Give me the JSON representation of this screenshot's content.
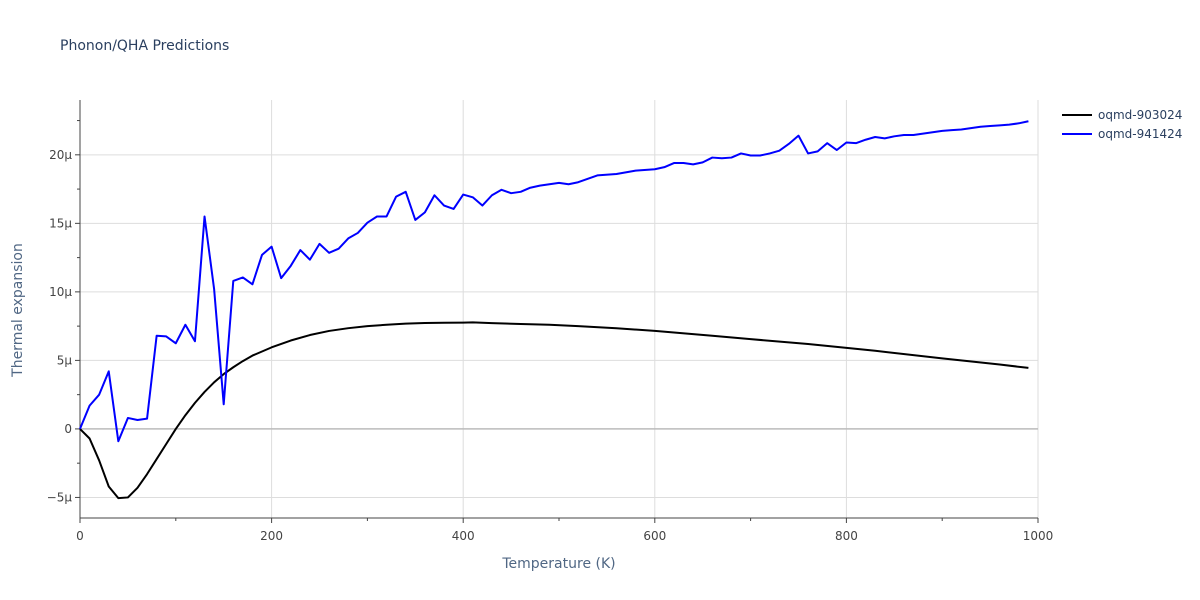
{
  "chart_data": {
    "type": "line",
    "title": "Phonon/QHA Predictions",
    "xlabel": "Temperature (K)",
    "ylabel": "Thermal expansion",
    "xlim": [
      0,
      1000
    ],
    "ylim": [
      -6.5e-06,
      2.4e-05
    ],
    "grid": true,
    "legend_position": "top-right",
    "x_ticks": [
      0,
      200,
      400,
      600,
      800,
      1000
    ],
    "x_tick_labels": [
      "0",
      "200",
      "400",
      "600",
      "800",
      "1000"
    ],
    "y_ticks": [
      -5e-06,
      0,
      5e-06,
      1e-05,
      1.5e-05,
      2e-05
    ],
    "y_tick_labels": [
      "−5μ",
      "0",
      "5μ",
      "10μ",
      "15μ",
      "20μ"
    ],
    "series": [
      {
        "name": "oqmd-903024",
        "color": "#000000",
        "x": [
          0,
          10,
          20,
          30,
          40,
          50,
          60,
          70,
          80,
          90,
          100,
          110,
          120,
          130,
          140,
          150,
          160,
          170,
          180,
          190,
          200,
          220,
          240,
          260,
          280,
          300,
          320,
          340,
          360,
          380,
          400,
          410,
          430,
          460,
          490,
          520,
          560,
          600,
          660,
          700,
          760,
          830,
          900,
          960,
          990
        ],
        "values": [
          0.0,
          -7e-07,
          -2.3e-06,
          -4.2e-06,
          -5.05e-06,
          -5e-06,
          -4.3e-06,
          -3.3e-06,
          -2.2e-06,
          -1.1e-06,
          0.0,
          1e-06,
          1.9e-06,
          2.7e-06,
          3.4e-06,
          4e-06,
          4.5e-06,
          4.95e-06,
          5.35e-06,
          5.65e-06,
          5.95e-06,
          6.45e-06,
          6.85e-06,
          7.15e-06,
          7.35e-06,
          7.5e-06,
          7.6e-06,
          7.68e-06,
          7.73e-06,
          7.75e-06,
          7.76e-06,
          7.77e-06,
          7.72e-06,
          7.66e-06,
          7.6e-06,
          7.5e-06,
          7.35e-06,
          7.15e-06,
          6.8e-06,
          6.55e-06,
          6.2e-06,
          5.7e-06,
          5.15e-06,
          4.7e-06,
          4.45e-06
        ]
      },
      {
        "name": "oqmd-941424",
        "color": "#0000ff",
        "x": [
          0,
          10,
          20,
          30,
          40,
          50,
          60,
          70,
          80,
          90,
          100,
          110,
          120,
          130,
          140,
          150,
          160,
          170,
          180,
          190,
          200,
          210,
          220,
          230,
          240,
          250,
          260,
          270,
          280,
          290,
          300,
          310,
          320,
          330,
          340,
          350,
          360,
          370,
          380,
          390,
          400,
          410,
          420,
          430,
          440,
          450,
          460,
          470,
          480,
          490,
          500,
          510,
          520,
          530,
          540,
          560,
          580,
          600,
          610,
          620,
          630,
          640,
          650,
          660,
          670,
          680,
          690,
          700,
          710,
          720,
          730,
          740,
          750,
          760,
          770,
          780,
          790,
          800,
          810,
          820,
          830,
          840,
          850,
          860,
          870,
          880,
          890,
          900,
          910,
          920,
          930,
          940,
          950,
          960,
          970,
          980,
          990
        ],
        "values": [
          0.0,
          1.7e-06,
          2.5e-06,
          4.2e-06,
          -9e-07,
          8e-07,
          6.5e-07,
          7.5e-07,
          6.8e-06,
          6.75e-06,
          6.25e-06,
          7.6e-06,
          6.4e-06,
          1.55e-05,
          1.02e-05,
          1.8e-06,
          1.08e-05,
          1.105e-05,
          1.055e-05,
          1.27e-05,
          1.33e-05,
          1.1e-05,
          1.19e-05,
          1.305e-05,
          1.235e-05,
          1.35e-05,
          1.285e-05,
          1.315e-05,
          1.39e-05,
          1.43e-05,
          1.505e-05,
          1.55e-05,
          1.55e-05,
          1.695e-05,
          1.73e-05,
          1.525e-05,
          1.58e-05,
          1.705e-05,
          1.63e-05,
          1.605e-05,
          1.71e-05,
          1.69e-05,
          1.63e-05,
          1.705e-05,
          1.745e-05,
          1.72e-05,
          1.73e-05,
          1.76e-05,
          1.775e-05,
          1.785e-05,
          1.795e-05,
          1.785e-05,
          1.8e-05,
          1.825e-05,
          1.85e-05,
          1.86e-05,
          1.885e-05,
          1.895e-05,
          1.91e-05,
          1.94e-05,
          1.94e-05,
          1.93e-05,
          1.945e-05,
          1.98e-05,
          1.975e-05,
          1.98e-05,
          2.01e-05,
          1.995e-05,
          1.995e-05,
          2.01e-05,
          2.03e-05,
          2.08e-05,
          2.14e-05,
          2.01e-05,
          2.025e-05,
          2.085e-05,
          2.035e-05,
          2.09e-05,
          2.085e-05,
          2.11e-05,
          2.13e-05,
          2.12e-05,
          2.135e-05,
          2.145e-05,
          2.145e-05,
          2.155e-05,
          2.165e-05,
          2.175e-05,
          2.18e-05,
          2.185e-05,
          2.195e-05,
          2.205e-05,
          2.21e-05,
          2.215e-05,
          2.22e-05,
          2.23e-05,
          2.245e-05
        ]
      }
    ]
  }
}
